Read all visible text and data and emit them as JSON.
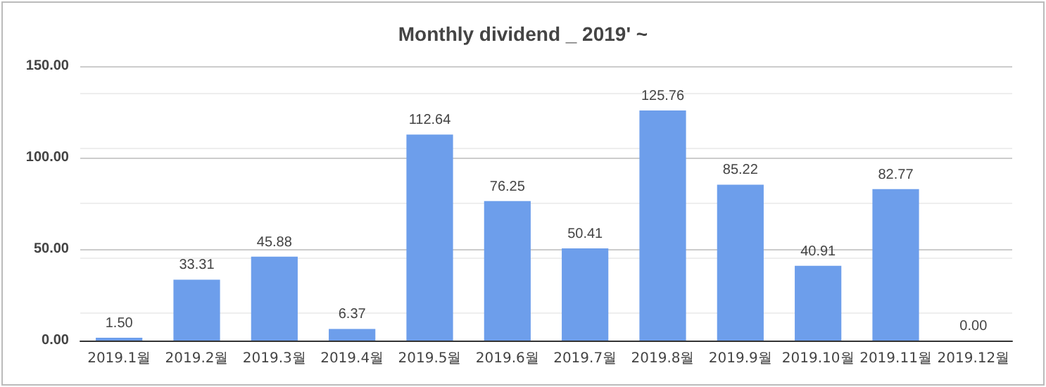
{
  "chart_data": {
    "type": "bar",
    "title": "Monthly dividend _ 2019' ~",
    "categories": [
      "2019.1월",
      "2019.2월",
      "2019.3월",
      "2019.4월",
      "2019.5월",
      "2019.6월",
      "2019.7월",
      "2019.8월",
      "2019.9월",
      "2019.10월",
      "2019.11월",
      "2019.12월"
    ],
    "values": [
      1.5,
      33.31,
      45.88,
      6.37,
      112.64,
      76.25,
      50.41,
      125.76,
      85.22,
      40.91,
      82.77,
      0
    ],
    "value_labels": [
      "1.50",
      "33.31",
      "45.88",
      "6.37",
      "112.64",
      "76.25",
      "50.41",
      "125.76",
      "85.22",
      "40.91",
      "82.77",
      "0.00"
    ],
    "color": "#6d9eeb",
    "ylim": [
      0,
      150
    ],
    "yticks": [
      {
        "value": 0,
        "label": "0.00"
      },
      {
        "value": 50,
        "label": "50.00"
      },
      {
        "value": 100,
        "label": "100.00"
      },
      {
        "value": 150,
        "label": "150.00"
      }
    ],
    "grid": true
  }
}
